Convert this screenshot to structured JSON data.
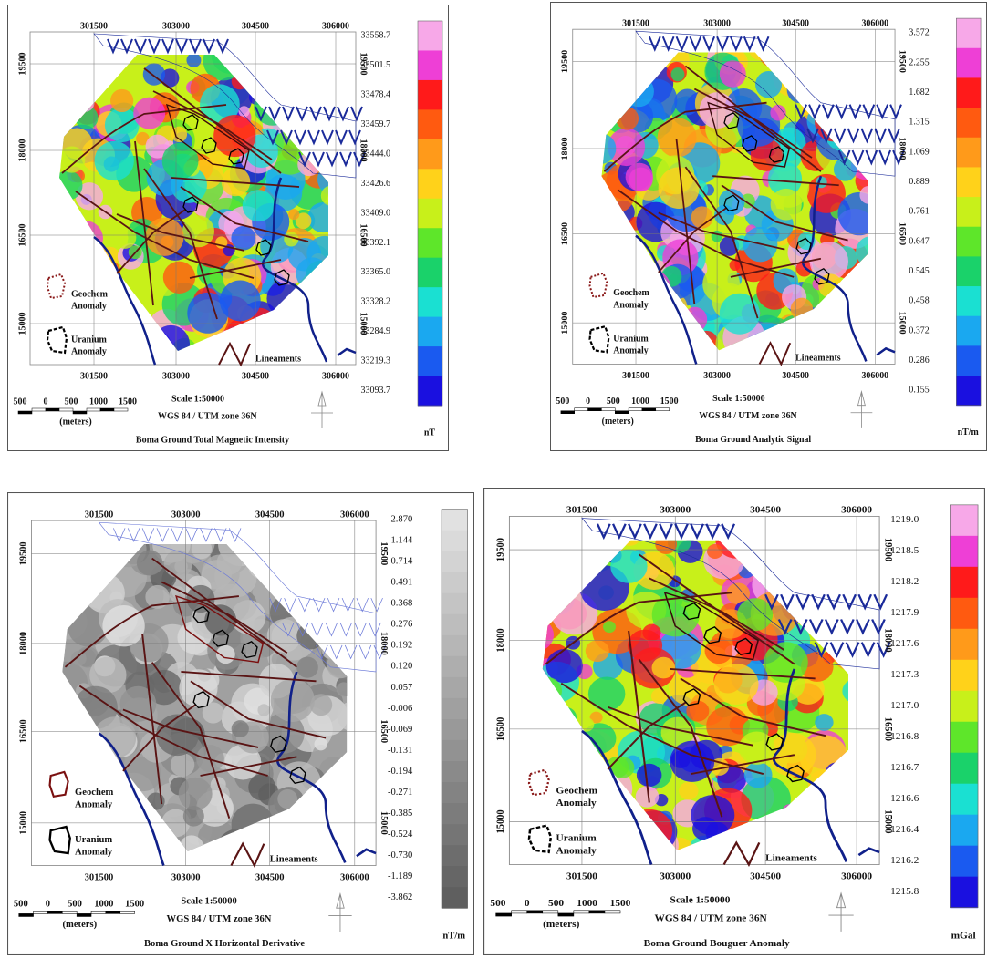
{
  "panels": [
    {
      "title": "Boma Ground Total Magnetic Intensity",
      "unit": "nT",
      "colorbar": [
        "33558.7",
        "33501.5",
        "33478.4",
        "33459.7",
        "33444.0",
        "33426.6",
        "33409.0",
        "33392.1",
        "33365.0",
        "33328.2",
        "33284.9",
        "33219.3",
        "33093.7"
      ],
      "x_ticks": [
        301500,
        303000,
        304500,
        306000
      ],
      "y_ticks": [
        19500,
        18000,
        16500,
        15000
      ],
      "geochem": [
        "Geochem",
        "Anomaly"
      ],
      "uranium": [
        "Uranium",
        "Anomaly"
      ],
      "lineaments": "Lineaments",
      "scale_ticks": [
        "500",
        "0",
        "500",
        "1000",
        "1500"
      ],
      "scale_unit": "(meters)",
      "scale": "Scale 1:50000",
      "projection": "WGS 84 / UTM zone 36N"
    },
    {
      "title": "Boma Ground Analytic Signal",
      "unit": "nT/m",
      "colorbar": [
        "3.572",
        "2.255",
        "1.682",
        "1.315",
        "1.069",
        "0.889",
        "0.761",
        "0.647",
        "0.545",
        "0.458",
        "0.372",
        "0.286",
        "0.155"
      ],
      "x_ticks": [
        301500,
        303000,
        304500,
        306000
      ],
      "y_ticks": [
        19500,
        18000,
        16500,
        15000
      ],
      "geochem": [
        "Geochem",
        "Anomaly"
      ],
      "uranium": [
        "Uranium",
        "Anomaly"
      ],
      "lineaments": "Lineaments",
      "scale_ticks": [
        "500",
        "0",
        "500",
        "1000",
        "1500"
      ],
      "scale_unit": "(meters)",
      "scale": "Scale 1:50000",
      "projection": "WGS 84 / UTM zone 36N"
    },
    {
      "title": "Boma Ground X Horizontal Derivative",
      "unit": "nT/m",
      "colorbar": [
        "2.870",
        "1.144",
        "0.714",
        "0.491",
        "0.368",
        "0.276",
        "0.192",
        "0.120",
        "0.057",
        "-0.006",
        "-0.069",
        "-0.131",
        "-0.194",
        "-0.271",
        "-0.385",
        "-0.524",
        "-0.730",
        "-1.189",
        "-3.862"
      ],
      "x_ticks": [
        301500,
        303000,
        304500,
        306000
      ],
      "y_ticks": [
        19500,
        18000,
        16500,
        15000
      ],
      "geochem": [
        "Geochem",
        "Anomaly"
      ],
      "uranium": [
        "Uranium",
        "Anomaly"
      ],
      "lineaments": "Lineaments",
      "scale_ticks": [
        "500",
        "0",
        "500",
        "1000",
        "1500"
      ],
      "scale_unit": "(meters)",
      "scale": "Scale 1:50000",
      "projection": "WGS 84 / UTM zone 36N"
    },
    {
      "title": "Boma Ground Bouguer Anomaly",
      "unit": "mGal",
      "colorbar": [
        "1219.0",
        "1218.5",
        "1218.2",
        "1217.9",
        "1217.6",
        "1217.3",
        "1217.0",
        "1216.8",
        "1216.7",
        "1216.6",
        "1216.4",
        "1216.2",
        "1215.8"
      ],
      "x_ticks": [
        301500,
        303000,
        304500,
        306000
      ],
      "y_ticks": [
        19500,
        18000,
        16500,
        15000
      ],
      "geochem": [
        "Geochem",
        "Anomaly"
      ],
      "uranium": [
        "Uranium",
        "Anomaly"
      ],
      "lineaments": "Lineaments",
      "scale_ticks": [
        "500",
        "0",
        "500",
        "1000",
        "1500"
      ],
      "scale_unit": "(meters)",
      "scale": "Scale 1:50000",
      "projection": "WGS 84 / UTM zone 36N"
    }
  ]
}
